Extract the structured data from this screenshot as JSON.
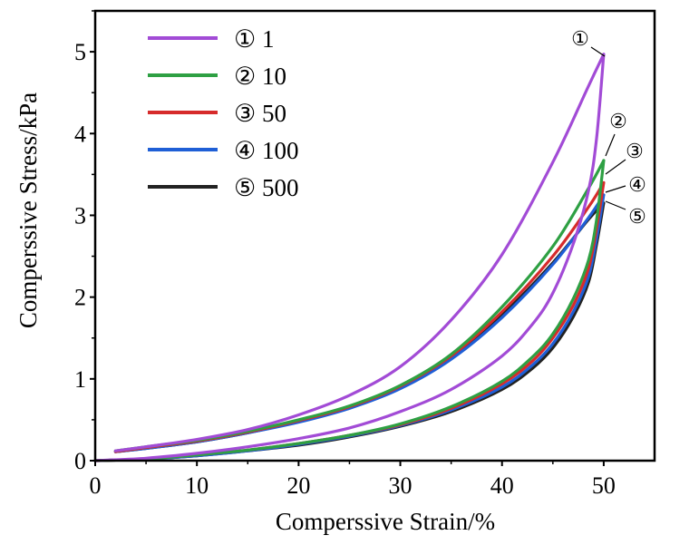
{
  "chart_data": {
    "type": "line",
    "title": "",
    "xlabel": "Comperssive Strain/%",
    "ylabel": "Comperssive Stress/kPa",
    "xlim": [
      0,
      55
    ],
    "ylim": [
      0,
      5.5
    ],
    "xticks": [
      "0",
      "10",
      "20",
      "30",
      "40",
      "50"
    ],
    "yticks": [
      "0",
      "1",
      "2",
      "3",
      "4",
      "5"
    ],
    "grid": false,
    "legend_position": "top-left",
    "series": [
      {
        "name": "① 1",
        "color": "#a24bd6",
        "loading": [
          [
            0,
            0
          ],
          [
            5,
            0.03
          ],
          [
            10,
            0.09
          ],
          [
            15,
            0.17
          ],
          [
            20,
            0.27
          ],
          [
            25,
            0.4
          ],
          [
            30,
            0.6
          ],
          [
            35,
            0.87
          ],
          [
            40,
            1.28
          ],
          [
            43,
            1.67
          ],
          [
            45,
            2.05
          ],
          [
            47,
            2.65
          ],
          [
            48.5,
            3.3
          ],
          [
            49.3,
            3.95
          ],
          [
            50,
            4.97
          ]
        ],
        "unloading": [
          [
            50,
            4.97
          ],
          [
            48.5,
            4.58
          ],
          [
            45,
            3.65
          ],
          [
            40,
            2.52
          ],
          [
            35,
            1.72
          ],
          [
            30,
            1.15
          ],
          [
            25,
            0.8
          ],
          [
            20,
            0.56
          ],
          [
            15,
            0.38
          ],
          [
            10,
            0.26
          ],
          [
            5,
            0.17
          ],
          [
            2,
            0.12
          ]
        ]
      },
      {
        "name": "② 10",
        "color": "#2ea043",
        "loading": [
          [
            0,
            0
          ],
          [
            5,
            0.02
          ],
          [
            10,
            0.07
          ],
          [
            15,
            0.13
          ],
          [
            20,
            0.21
          ],
          [
            25,
            0.31
          ],
          [
            30,
            0.45
          ],
          [
            35,
            0.66
          ],
          [
            40,
            0.97
          ],
          [
            43,
            1.27
          ],
          [
            45,
            1.55
          ],
          [
            47,
            1.98
          ],
          [
            48.5,
            2.45
          ],
          [
            49.3,
            2.95
          ],
          [
            50,
            3.67
          ]
        ],
        "unloading": [
          [
            50,
            3.67
          ],
          [
            48.5,
            3.33
          ],
          [
            45,
            2.62
          ],
          [
            40,
            1.88
          ],
          [
            35,
            1.3
          ],
          [
            30,
            0.92
          ],
          [
            25,
            0.67
          ],
          [
            20,
            0.5
          ],
          [
            15,
            0.36
          ],
          [
            10,
            0.25
          ],
          [
            5,
            0.17
          ],
          [
            2,
            0.12
          ]
        ]
      },
      {
        "name": "③ 50",
        "color": "#d62b2b",
        "loading": [
          [
            0,
            0
          ],
          [
            5,
            0.02
          ],
          [
            10,
            0.07
          ],
          [
            15,
            0.13
          ],
          [
            20,
            0.21
          ],
          [
            25,
            0.31
          ],
          [
            30,
            0.44
          ],
          [
            35,
            0.64
          ],
          [
            40,
            0.94
          ],
          [
            43,
            1.22
          ],
          [
            45,
            1.5
          ],
          [
            47,
            1.9
          ],
          [
            48.5,
            2.35
          ],
          [
            49.3,
            2.85
          ],
          [
            50,
            3.4
          ]
        ],
        "unloading": [
          [
            50,
            3.4
          ],
          [
            48.5,
            3.1
          ],
          [
            45,
            2.5
          ],
          [
            40,
            1.82
          ],
          [
            35,
            1.28
          ],
          [
            30,
            0.91
          ],
          [
            25,
            0.66
          ],
          [
            20,
            0.49
          ],
          [
            15,
            0.35
          ],
          [
            10,
            0.24
          ],
          [
            5,
            0.16
          ],
          [
            2,
            0.11
          ]
        ]
      },
      {
        "name": "④ 100",
        "color": "#1f5fd6",
        "loading": [
          [
            0,
            0
          ],
          [
            5,
            0.02
          ],
          [
            10,
            0.06
          ],
          [
            15,
            0.12
          ],
          [
            20,
            0.2
          ],
          [
            25,
            0.3
          ],
          [
            30,
            0.43
          ],
          [
            35,
            0.62
          ],
          [
            40,
            0.9
          ],
          [
            43,
            1.17
          ],
          [
            45,
            1.43
          ],
          [
            47,
            1.82
          ],
          [
            48.5,
            2.25
          ],
          [
            49.3,
            2.72
          ],
          [
            50,
            3.25
          ]
        ],
        "unloading": [
          [
            50,
            3.25
          ],
          [
            48.5,
            2.97
          ],
          [
            45,
            2.4
          ],
          [
            40,
            1.75
          ],
          [
            35,
            1.24
          ],
          [
            30,
            0.88
          ],
          [
            25,
            0.64
          ],
          [
            20,
            0.47
          ],
          [
            15,
            0.34
          ],
          [
            10,
            0.23
          ],
          [
            5,
            0.15
          ],
          [
            2,
            0.11
          ]
        ]
      },
      {
        "name": "⑤ 500",
        "color": "#222222",
        "loading": [
          [
            0,
            0
          ],
          [
            5,
            0.02
          ],
          [
            10,
            0.06
          ],
          [
            15,
            0.12
          ],
          [
            20,
            0.19
          ],
          [
            25,
            0.29
          ],
          [
            30,
            0.42
          ],
          [
            35,
            0.6
          ],
          [
            40,
            0.87
          ],
          [
            43,
            1.13
          ],
          [
            45,
            1.38
          ],
          [
            47,
            1.76
          ],
          [
            48.5,
            2.18
          ],
          [
            49.3,
            2.65
          ],
          [
            50,
            3.15
          ]
        ],
        "unloading": [
          [
            50,
            3.15
          ],
          [
            48.5,
            2.95
          ],
          [
            45,
            2.42
          ],
          [
            40,
            1.78
          ],
          [
            35,
            1.26
          ],
          [
            30,
            0.9
          ],
          [
            25,
            0.65
          ],
          [
            20,
            0.48
          ],
          [
            15,
            0.34
          ],
          [
            10,
            0.23
          ],
          [
            5,
            0.15
          ],
          [
            2,
            0.11
          ]
        ]
      }
    ],
    "annotations": [
      "①",
      "②",
      "③",
      "④",
      "⑤"
    ]
  }
}
